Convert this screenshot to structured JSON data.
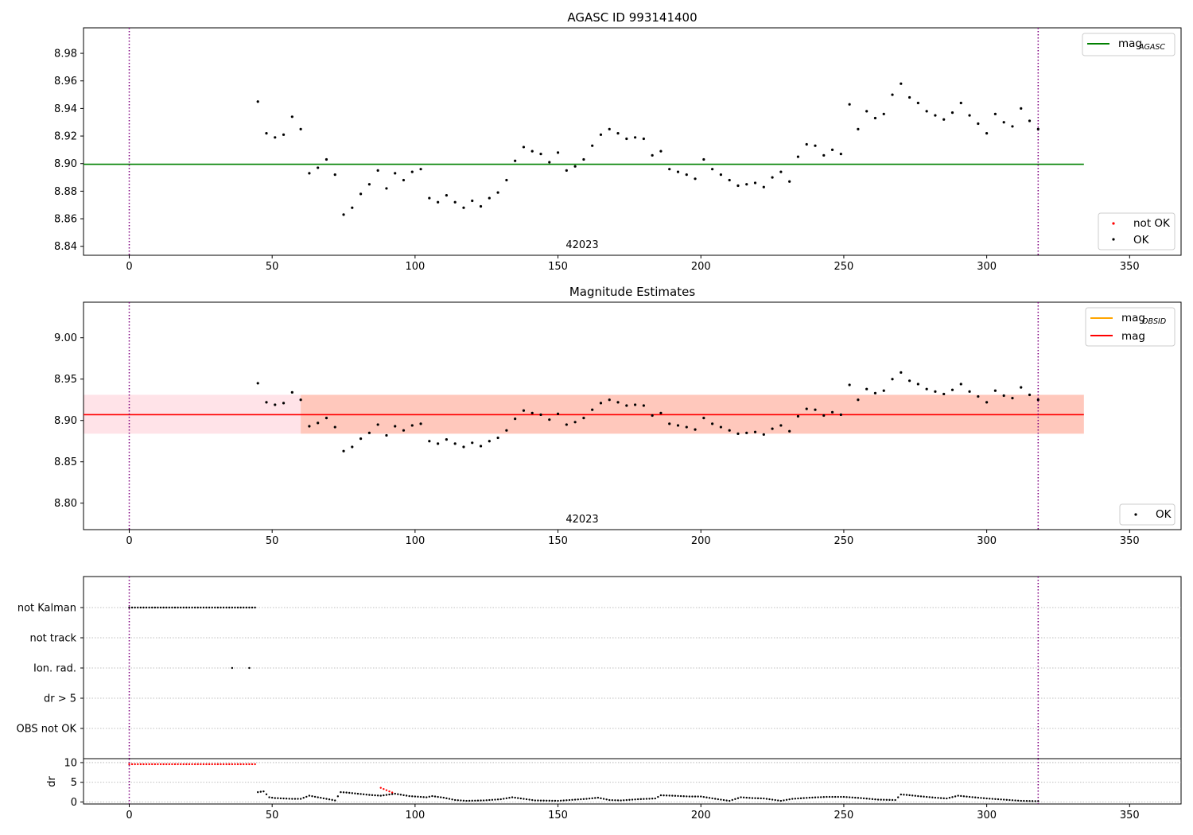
{
  "figure": {
    "panel1_title": "AGASC ID 993141400",
    "panel2_title": "Magnitude Estimates",
    "obsid_label": "42023"
  },
  "colors": {
    "ok": "#000000",
    "not_ok": "#ff0000",
    "mag_agasc_line": "#008000",
    "mag_obsid_line": "#ffa500",
    "mag_line": "#ff0000",
    "band_outer": "#ffc0cb",
    "band_inner": "#ffa07a",
    "boundary": "#800080"
  },
  "legends": {
    "agasc_line": {
      "main": "mag",
      "sub": "AGASC"
    },
    "points": [
      {
        "label": "not OK"
      },
      {
        "label": "OK"
      }
    ],
    "obsid_line": {
      "main": "mag",
      "sub": "OBSID"
    },
    "mag_line": {
      "label": "mag"
    },
    "points2": [
      {
        "label": "OK"
      }
    ]
  },
  "chart_data": [
    {
      "type": "scatter",
      "title": "AGASC ID 993141400",
      "xlim": [
        -16,
        368
      ],
      "ylim": [
        8.8335,
        8.9985
      ],
      "xticks": [
        "0",
        "50",
        "100",
        "150",
        "200",
        "250",
        "300",
        "350"
      ],
      "yticks": [
        "8.84",
        "8.86",
        "8.88",
        "8.90",
        "8.92",
        "8.94",
        "8.96",
        "8.98"
      ],
      "mag_agasc": 8.8995,
      "mag_agasc_xrange": [
        -16,
        334
      ],
      "obsid_boundaries": [
        0,
        318
      ],
      "annotation": {
        "text": "42023",
        "x": 158
      },
      "series": [
        {
          "name": "OK",
          "color": "#000000",
          "x_start": 45,
          "x_end": 318,
          "x": [
            45,
            48,
            51,
            54,
            57,
            60,
            63,
            66,
            69,
            72,
            75,
            78,
            81,
            84,
            87,
            90,
            93,
            96,
            99,
            102,
            105,
            108,
            111,
            114,
            117,
            120,
            123,
            126,
            129,
            132,
            135,
            138,
            141,
            144,
            147,
            150,
            153,
            156,
            159,
            162,
            165,
            168,
            171,
            174,
            177,
            180,
            183,
            186,
            189,
            192,
            195,
            198,
            201,
            204,
            207,
            210,
            213,
            216,
            219,
            222,
            225,
            228,
            231,
            234,
            237,
            240,
            243,
            246,
            249,
            252,
            255,
            258,
            261,
            264,
            267,
            270,
            273,
            276,
            279,
            282,
            285,
            288,
            291,
            294,
            297,
            300,
            303,
            306,
            309,
            312,
            315,
            318
          ],
          "y": [
            8.945,
            8.922,
            8.919,
            8.921,
            8.934,
            8.925,
            8.893,
            8.897,
            8.903,
            8.892,
            8.863,
            8.868,
            8.878,
            8.885,
            8.895,
            8.882,
            8.893,
            8.888,
            8.894,
            8.896,
            8.875,
            8.872,
            8.877,
            8.872,
            8.868,
            8.873,
            8.869,
            8.875,
            8.879,
            8.888,
            8.902,
            8.912,
            8.909,
            8.907,
            8.901,
            8.908,
            8.895,
            8.898,
            8.903,
            8.913,
            8.921,
            8.925,
            8.922,
            8.918,
            8.919,
            8.918,
            8.906,
            8.909,
            8.896,
            8.894,
            8.892,
            8.889,
            8.903,
            8.896,
            8.892,
            8.888,
            8.884,
            8.885,
            8.886,
            8.883,
            8.89,
            8.894,
            8.887,
            8.905,
            8.914,
            8.913,
            8.906,
            8.91,
            8.907,
            8.943,
            8.925,
            8.938,
            8.933,
            8.936,
            8.95,
            8.958,
            8.948,
            8.944,
            8.938,
            8.935,
            8.932,
            8.937,
            8.944,
            8.935,
            8.929,
            8.922,
            8.936,
            8.93,
            8.927,
            8.94,
            8.931,
            8.925
          ]
        }
      ]
    },
    {
      "type": "scatter",
      "title": "Magnitude Estimates",
      "xlim": [
        -16,
        368
      ],
      "ylim": [
        8.768,
        9.043
      ],
      "xticks": [
        "0",
        "50",
        "100",
        "150",
        "200",
        "250",
        "300",
        "350"
      ],
      "yticks": [
        "8.80",
        "8.85",
        "8.90",
        "8.95",
        "9.00"
      ],
      "mag_obsid": 8.907,
      "mag": 8.907,
      "band_outer": [
        8.884,
        8.931
      ],
      "band_outer_xrange": [
        -16,
        334
      ],
      "band_inner": [
        8.884,
        8.931
      ],
      "band_inner_xrange": [
        60,
        334
      ],
      "obsid_boundaries": [
        0,
        318
      ],
      "annotation": {
        "text": "42023",
        "x": 158
      },
      "series": [
        {
          "name": "OK",
          "color": "#000000",
          "same_as_panel": 1
        }
      ]
    },
    {
      "type": "scatter",
      "title": "",
      "xlim": [
        -16,
        368
      ],
      "categories": [
        "not Kalman",
        "not track",
        "Ion. rad.",
        "dr > 5",
        "OBS not OK"
      ],
      "flag_points": {
        "not Kalman": {
          "x_start": 0,
          "x_end": 44,
          "step": 1
        },
        "Ion. rad.": {
          "x": [
            36,
            42
          ]
        }
      },
      "obsid_boundaries": [
        0,
        318
      ]
    },
    {
      "type": "line",
      "ylabel": "dr",
      "xlim": [
        -16,
        368
      ],
      "ylim": [
        -0.5,
        11
      ],
      "xticks": [
        "0",
        "50",
        "100",
        "150",
        "200",
        "250",
        "300",
        "350"
      ],
      "yticks": [
        "0",
        "5",
        "10"
      ],
      "obsid_boundaries": [
        0,
        318
      ],
      "series": [
        {
          "name": "not OK",
          "color": "#ff0000",
          "x_start": 0,
          "x_end": 44,
          "value": 9.6
        },
        {
          "name": "not OK",
          "color": "#ff0000",
          "x": [
            88,
            89,
            90,
            91,
            92
          ],
          "y": [
            3.6,
            3.3,
            3.0,
            2.7,
            2.4
          ]
        },
        {
          "name": "OK",
          "color": "#000000",
          "x": [
            45,
            47,
            49,
            51,
            54,
            57,
            60,
            63,
            66,
            69,
            72,
            74,
            76,
            80,
            84,
            88,
            93,
            98,
            104,
            106,
            110,
            114,
            118,
            124,
            130,
            134,
            138,
            142,
            150,
            156,
            160,
            164,
            168,
            172,
            178,
            184,
            186,
            190,
            196,
            200,
            206,
            210,
            214,
            218,
            222,
            228,
            232,
            238,
            244,
            250,
            256,
            262,
            268,
            270,
            272,
            276,
            282,
            286,
            290,
            294,
            300,
            306,
            312,
            318
          ],
          "y": [
            2.5,
            2.7,
            1.2,
            1.0,
            0.9,
            0.8,
            0.8,
            1.6,
            1.2,
            0.8,
            0.4,
            2.5,
            2.4,
            2.1,
            1.8,
            1.6,
            2.1,
            1.5,
            1.2,
            1.5,
            1.1,
            0.5,
            0.3,
            0.4,
            0.7,
            1.2,
            0.8,
            0.4,
            0.3,
            0.6,
            0.8,
            1.1,
            0.5,
            0.4,
            0.7,
            0.9,
            1.7,
            1.6,
            1.4,
            1.4,
            0.7,
            0.3,
            1.2,
            1.0,
            0.9,
            0.3,
            0.8,
            1.1,
            1.3,
            1.3,
            1.0,
            0.6,
            0.5,
            1.9,
            1.8,
            1.5,
            1.1,
            0.9,
            1.6,
            1.3,
            0.9,
            0.6,
            0.3,
            0.2
          ]
        }
      ]
    }
  ]
}
